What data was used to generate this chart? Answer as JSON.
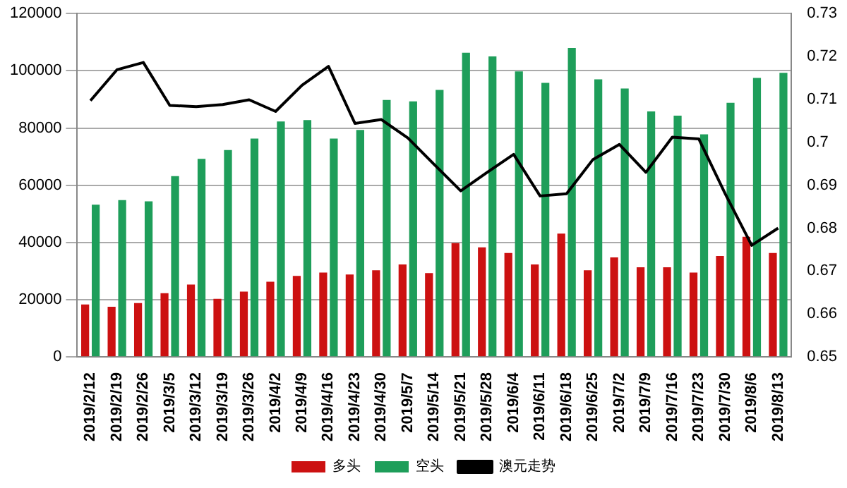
{
  "chart_data": {
    "type": "bar",
    "categories": [
      "2019/2/12",
      "2019/2/19",
      "2019/2/26",
      "2019/3/5",
      "2019/3/12",
      "2019/3/19",
      "2019/3/26",
      "2019/4/2",
      "2019/4/9",
      "2019/4/16",
      "2019/4/23",
      "2019/4/30",
      "2019/5/7",
      "2019/5/14",
      "2019/5/21",
      "2019/5/28",
      "2019/6/4",
      "2019/6/11",
      "2019/6/18",
      "2019/6/25",
      "2019/7/2",
      "2019/7/9",
      "2019/7/16",
      "2019/7/23",
      "2019/7/30",
      "2019/8/6",
      "2019/8/13"
    ],
    "series": [
      {
        "name": "多头",
        "color": "#cc1111",
        "values": [
          18300,
          17500,
          18800,
          22300,
          25300,
          20300,
          22800,
          26300,
          28300,
          29500,
          28800,
          30300,
          32300,
          29300,
          39800,
          38300,
          36300,
          32300,
          43100,
          30300,
          34800,
          31300,
          31300,
          29500,
          35300,
          42000,
          36300
        ]
      },
      {
        "name": "空头",
        "color": "#1e9e5a",
        "values": [
          53200,
          54800,
          54400,
          63200,
          69200,
          72300,
          76300,
          82300,
          82800,
          76300,
          79300,
          89800,
          89300,
          93300,
          106300,
          105000,
          99800,
          95800,
          108000,
          97000,
          93800,
          85800,
          84300,
          77800,
          88800,
          97500,
          99300
        ]
      },
      {
        "name": "澳元走势",
        "type": "line",
        "axis": "y2",
        "color": "#000000",
        "values": [
          0.7097,
          0.7169,
          0.7186,
          0.7086,
          0.7083,
          0.7088,
          0.7099,
          0.7072,
          0.7133,
          0.7177,
          0.7044,
          0.7053,
          0.701,
          0.6948,
          0.6887,
          0.693,
          0.6972,
          0.6875,
          0.688,
          0.696,
          0.6995,
          0.693,
          0.7012,
          0.7008,
          0.688,
          0.676,
          0.68
        ]
      }
    ],
    "ylim": [
      0,
      120000
    ],
    "yticks": [
      0,
      20000,
      40000,
      60000,
      80000,
      100000,
      120000
    ],
    "y2lim": [
      0.65,
      0.73
    ],
    "y2ticks": [
      0.65,
      0.66,
      0.67,
      0.68,
      0.69,
      {
        "value": 0.7,
        "label": "0.7"
      },
      0.71,
      0.72,
      0.73
    ],
    "grid": "y",
    "legend": "bottom",
    "marker": "none"
  }
}
